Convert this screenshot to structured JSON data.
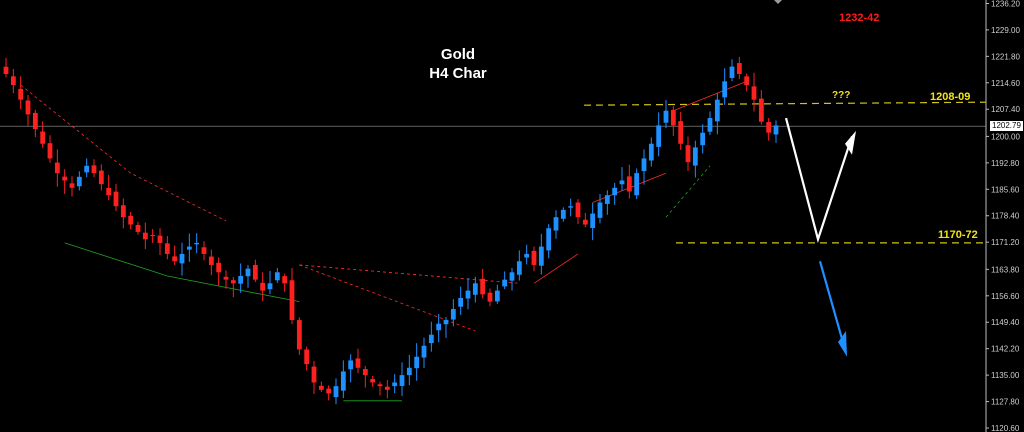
{
  "header": {
    "title_line1": "Gold",
    "title_line2": "H4 Char"
  },
  "annotations": {
    "top_target": "1232-42",
    "question": "???",
    "resistance_label": "1208-09",
    "support_label": "1170-72"
  },
  "colors": {
    "background": "#000000",
    "bull_candle": "#1e90ff",
    "bear_candle": "#ff2020",
    "level_line": "#d4c21a",
    "label_yellow": "#f2e317",
    "label_red": "#ff1a1a",
    "up_arrow": "#ffffff",
    "down_arrow": "#1e90ff",
    "support_trend": "#1fa31f",
    "resistance_trend": "#ff2a2a"
  },
  "chart_data": {
    "type": "candlestick",
    "instrument": "Gold",
    "timeframe": "H4",
    "ylim": [
      1120.6,
      1236.6
    ],
    "yticks": [
      "1120.60",
      "1127.80",
      "1135.00",
      "1142.20",
      "1149.40",
      "1156.60",
      "1163.80",
      "1171.20",
      "1178.40",
      "1185.60",
      "1192.80",
      "1200.00",
      "1207.40",
      "1214.60",
      "1221.80",
      "1229.00",
      "1236.20"
    ],
    "current_price": "1202.79",
    "levels": [
      {
        "label": "1208-09",
        "value": 1208.5
      },
      {
        "label": "1170-72",
        "value": 1171.0
      }
    ],
    "series": [
      {
        "name": "close",
        "values": [
          1217,
          1214,
          1210,
          1206,
          1202,
          1198,
          1194,
          1190,
          1188,
          1186,
          1189,
          1192,
          1190,
          1187,
          1184,
          1181,
          1178,
          1176,
          1174,
          1172,
          1173,
          1171,
          1168,
          1166,
          1168,
          1170,
          1171,
          1168,
          1165,
          1163,
          1161,
          1160,
          1162,
          1164,
          1161,
          1158,
          1160,
          1163,
          1160,
          1150,
          1142,
          1138,
          1133,
          1131,
          1130,
          1132,
          1136,
          1139,
          1137,
          1135,
          1133,
          1132,
          1131,
          1133,
          1135,
          1137,
          1140,
          1143,
          1146,
          1149,
          1150,
          1153,
          1156,
          1158,
          1160,
          1157,
          1155,
          1158,
          1161,
          1163,
          1166,
          1168,
          1165,
          1170,
          1175,
          1178,
          1180,
          1181,
          1178,
          1176,
          1179,
          1182,
          1184,
          1186,
          1188,
          1185,
          1190,
          1194,
          1198,
          1203,
          1207,
          1203,
          1198,
          1193,
          1197,
          1201,
          1205,
          1210,
          1215,
          1219,
          1217,
          1214,
          1210,
          1204,
          1201,
          1203
        ]
      }
    ]
  }
}
